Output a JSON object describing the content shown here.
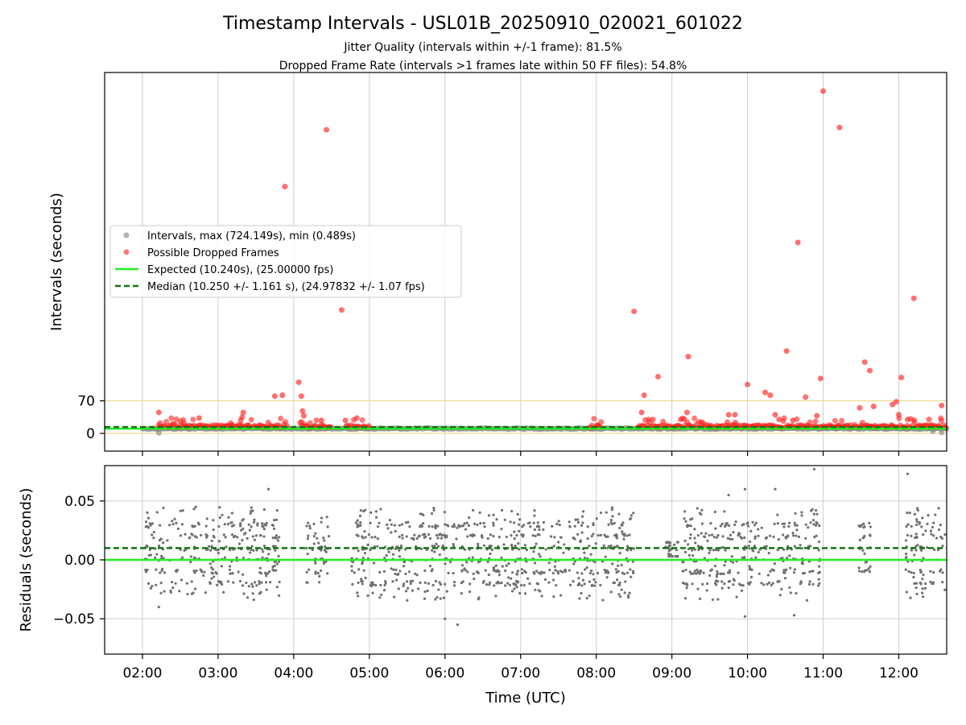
{
  "figure": {
    "title": "Timestamp Intervals - USL01B_20250910_020021_601022",
    "subtitle_line1": "Jitter Quality (intervals within +/-1 frame): 81.5%",
    "subtitle_line2": "Dropped Frame Rate (intervals >1 frames late within 50 FF files): 54.8%"
  },
  "chart_data": [
    {
      "type": "scatter",
      "panel": "intervals",
      "xlabel": "",
      "ylabel": "Intervals (seconds)",
      "xlim": [
        "01:30",
        "12:38"
      ],
      "ylim": [
        -38,
        775
      ],
      "yticks": [
        0,
        70
      ],
      "ytick_labels": [
        "0",
        "70"
      ],
      "grid": "x",
      "threshold_lines": [
        70,
        0
      ],
      "threshold_color": "#f0d78a",
      "legend_placement": "center-left",
      "legend": [
        {
          "label": "Intervals, max (724.149s), min (0.489s)",
          "marker": "circle",
          "color": "#808080"
        },
        {
          "label": "Possible Dropped Frames",
          "marker": "circle",
          "color": "#ff2222"
        },
        {
          "label": "Expected (10.240s), (25.00000 fps)",
          "marker": "line",
          "color": "#22ee22"
        },
        {
          "label": "Median (10.250 +/- 1.161 s), (24.97832 +/- 1.07 fps)",
          "marker": "dashed",
          "color": "#117711"
        }
      ],
      "series": [
        {
          "name": "Intervals, max (724.149s), min (0.489s)",
          "color": "#808080",
          "description_band": {
            "x_start": "02:00",
            "x_end": "12:38",
            "y_approx": 10.25
          },
          "points": [
            {
              "x": "02:13",
              "y": 1
            },
            {
              "x": "11:10",
              "y": 10
            },
            {
              "x": "12:27",
              "y": 5
            },
            {
              "x": "12:34",
              "y": 2
            }
          ]
        },
        {
          "name": "Possible Dropped Frames",
          "color": "#ff2222",
          "points": [
            {
              "x": "02:13",
              "y": 45
            },
            {
              "x": "02:14",
              "y": 22
            },
            {
              "x": "02:30",
              "y": 26
            },
            {
              "x": "02:33",
              "y": 22
            },
            {
              "x": "02:45",
              "y": 33
            },
            {
              "x": "03:10",
              "y": 22
            },
            {
              "x": "03:18",
              "y": 28
            },
            {
              "x": "03:19",
              "y": 35
            },
            {
              "x": "03:20",
              "y": 45
            },
            {
              "x": "03:45",
              "y": 80
            },
            {
              "x": "03:51",
              "y": 82
            },
            {
              "x": "03:53",
              "y": 530
            },
            {
              "x": "04:04",
              "y": 110
            },
            {
              "x": "04:06",
              "y": 80
            },
            {
              "x": "04:07",
              "y": 48
            },
            {
              "x": "04:08",
              "y": 38
            },
            {
              "x": "04:22",
              "y": 28
            },
            {
              "x": "04:26",
              "y": 652
            },
            {
              "x": "04:38",
              "y": 265
            },
            {
              "x": "04:41",
              "y": 28
            },
            {
              "x": "04:50",
              "y": 33
            },
            {
              "x": "08:30",
              "y": 262
            },
            {
              "x": "08:36",
              "y": 45
            },
            {
              "x": "08:38",
              "y": 82
            },
            {
              "x": "08:45",
              "y": 30
            },
            {
              "x": "08:49",
              "y": 122
            },
            {
              "x": "09:07",
              "y": 30
            },
            {
              "x": "09:12",
              "y": 45
            },
            {
              "x": "09:13",
              "y": 165
            },
            {
              "x": "09:45",
              "y": 40
            },
            {
              "x": "09:50",
              "y": 40
            },
            {
              "x": "10:00",
              "y": 105
            },
            {
              "x": "10:14",
              "y": 88
            },
            {
              "x": "10:18",
              "y": 82
            },
            {
              "x": "10:22",
              "y": 40
            },
            {
              "x": "10:25",
              "y": 30
            },
            {
              "x": "10:31",
              "y": 177
            },
            {
              "x": "10:36",
              "y": 28
            },
            {
              "x": "10:40",
              "y": 410
            },
            {
              "x": "10:46",
              "y": 78
            },
            {
              "x": "10:55",
              "y": 38
            },
            {
              "x": "10:58",
              "y": 118
            },
            {
              "x": "11:00",
              "y": 735
            },
            {
              "x": "11:13",
              "y": 657
            },
            {
              "x": "11:29",
              "y": 55
            },
            {
              "x": "11:33",
              "y": 153
            },
            {
              "x": "11:37",
              "y": 135
            },
            {
              "x": "11:40",
              "y": 58
            },
            {
              "x": "11:55",
              "y": 62
            },
            {
              "x": "11:58",
              "y": 68
            },
            {
              "x": "11:60",
              "y": 40
            },
            {
              "x": "12:02",
              "y": 120
            },
            {
              "x": "12:07",
              "y": 30
            },
            {
              "x": "12:12",
              "y": 290
            },
            {
              "x": "12:24",
              "y": 30
            },
            {
              "x": "12:34",
              "y": 60
            }
          ],
          "description_band": [
            {
              "x_start": "02:13",
              "x_end": "03:55",
              "y_approx": 12
            },
            {
              "x_start": "04:05",
              "x_end": "04:30",
              "y_approx": 12
            },
            {
              "x_start": "04:42",
              "x_end": "05:00",
              "y_approx": 12
            },
            {
              "x_start": "07:55",
              "x_end": "08:05",
              "y_approx": 12
            },
            {
              "x_start": "08:33",
              "x_end": "12:38",
              "y_approx": 12
            }
          ]
        },
        {
          "name": "Expected (10.240s), (25.00000 fps)",
          "type": "hline",
          "color": "#22ee22",
          "y": 10.24
        },
        {
          "name": "Median (10.250 +/- 1.161 s), (24.97832 +/- 1.07 fps)",
          "type": "hline",
          "style": "dashed",
          "color": "#117711",
          "y": 10.25
        }
      ]
    },
    {
      "type": "scatter",
      "panel": "residuals",
      "xlabel": "Time (UTC)",
      "ylabel": "Residuals (seconds)",
      "xlim": [
        "01:30",
        "12:38"
      ],
      "ylim": [
        -0.08,
        0.08
      ],
      "xticks": [
        "02:00",
        "03:00",
        "04:00",
        "05:00",
        "06:00",
        "07:00",
        "08:00",
        "09:00",
        "10:00",
        "11:00",
        "12:00"
      ],
      "yticks": [
        0.05,
        0.0,
        -0.05
      ],
      "ytick_labels": [
        "0.05",
        "0.00",
        "−0.05"
      ],
      "grid": "both",
      "point_color": "#707070",
      "reference_lines": [
        {
          "y": 0.0,
          "color": "#22ee22",
          "style": "solid"
        },
        {
          "y": 0.01,
          "color": "#117711",
          "style": "dashed"
        }
      ],
      "cloud_segments": [
        {
          "x_start": "02:02",
          "x_end": "03:50",
          "y_min": -0.035,
          "y_max": 0.045
        },
        {
          "x_start": "04:10",
          "x_end": "04:28",
          "y_min": -0.025,
          "y_max": 0.04
        },
        {
          "x_start": "04:45",
          "x_end": "08:30",
          "y_min": -0.035,
          "y_max": 0.045
        },
        {
          "x_start": "08:55",
          "x_end": "09:05",
          "y_min": 0.003,
          "y_max": 0.015
        },
        {
          "x_start": "09:08",
          "x_end": "10:58",
          "y_min": -0.035,
          "y_max": 0.045
        },
        {
          "x_start": "11:28",
          "x_end": "11:38",
          "y_min": -0.01,
          "y_max": 0.035
        },
        {
          "x_start": "12:05",
          "x_end": "12:38",
          "y_min": -0.035,
          "y_max": 0.045
        }
      ],
      "outliers": [
        {
          "x": "02:13",
          "y": -0.04
        },
        {
          "x": "03:40",
          "y": 0.06
        },
        {
          "x": "06:00",
          "y": -0.05
        },
        {
          "x": "06:10",
          "y": -0.055
        },
        {
          "x": "09:45",
          "y": 0.055
        },
        {
          "x": "09:58",
          "y": -0.048
        },
        {
          "x": "09:58",
          "y": 0.06
        },
        {
          "x": "10:22",
          "y": 0.06
        },
        {
          "x": "10:37",
          "y": -0.047
        },
        {
          "x": "10:53",
          "y": 0.077
        },
        {
          "x": "12:07",
          "y": 0.073
        }
      ]
    }
  ]
}
